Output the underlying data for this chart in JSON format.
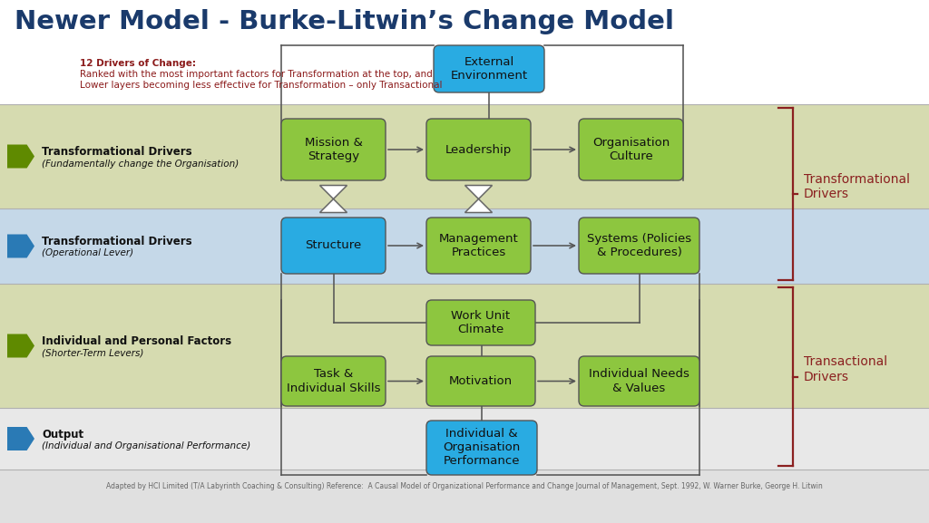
{
  "title": "Newer Model - Burke-Litwin’s Change Model",
  "title_color": "#1a3a6b",
  "subtitle_line1": "12 Drivers of Change:",
  "subtitle_line2": "Ranked with the most important factors for Transformation at the top, and",
  "subtitle_line3": "Lower layers becoming less effective for Transformation – only Transactional",
  "subtitle_color": "#8b1a1a",
  "bg_color": "#f0f0f0",
  "row1_color": "#d6dbb0",
  "row2_color": "#c5d8e8",
  "row3_color": "#d6dbb0",
  "row4_color": "#e8e8e8",
  "footer_color": "#e0e0e0",
  "green_box_color": "#8dc63f",
  "blue_box_color": "#29abe2",
  "line_color": "#555555",
  "bracket_color": "#8b2020",
  "label_color": "#8b2020",
  "boxes": {
    "external_env": {
      "text": "External\nEnvironment",
      "color": "#29abe2"
    },
    "mission": {
      "text": "Mission &\nStrategy",
      "color": "#8dc63f"
    },
    "leadership": {
      "text": "Leadership",
      "color": "#8dc63f"
    },
    "org_culture": {
      "text": "Organisation\nCulture",
      "color": "#8dc63f"
    },
    "structure": {
      "text": "Structure",
      "color": "#29abe2"
    },
    "mgmt": {
      "text": "Management\nPractices",
      "color": "#8dc63f"
    },
    "systems": {
      "text": "Systems (Policies\n& Procedures)",
      "color": "#8dc63f"
    },
    "work_unit": {
      "text": "Work Unit\nClimate",
      "color": "#8dc63f"
    },
    "task": {
      "text": "Task &\nIndividual Skills",
      "color": "#8dc63f"
    },
    "motivation": {
      "text": "Motivation",
      "color": "#8dc63f"
    },
    "indiv_needs": {
      "text": "Individual Needs\n& Values",
      "color": "#8dc63f"
    },
    "output": {
      "text": "Individual &\nOrganisation\nPerformance",
      "color": "#29abe2"
    }
  },
  "footer_text": "Adapted by HCI Limited (T/A Labyrinth Coaching & Consulting) Reference:  A Causal Model of Organizational Performance and Change Journal of Management, Sept. 1992, W. Warner Burke, George H. Litwin"
}
